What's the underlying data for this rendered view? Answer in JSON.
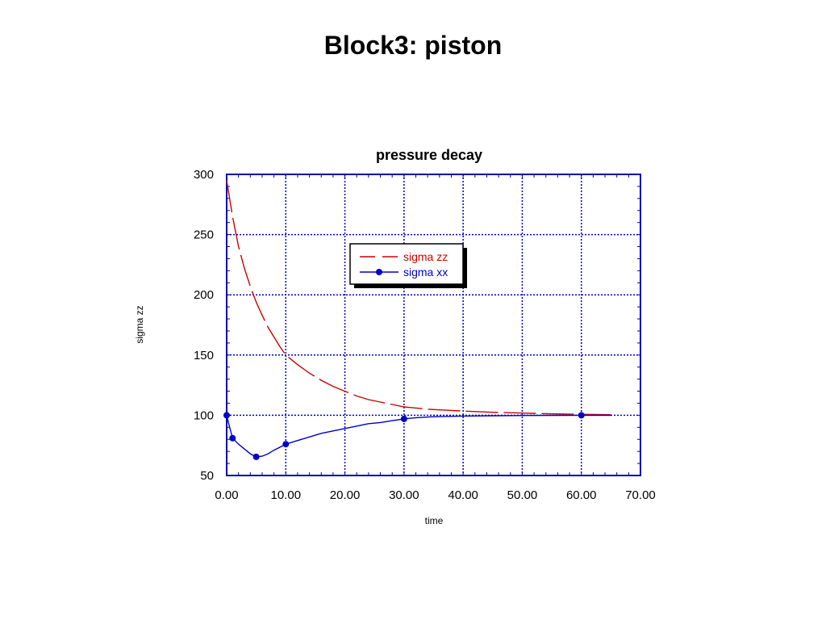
{
  "page": {
    "title": "Block3: piston"
  },
  "chart_data": {
    "type": "line",
    "title": "pressure decay",
    "xlabel": "time",
    "ylabel": "sigma zz",
    "xlim": [
      0,
      70
    ],
    "ylim": [
      50,
      300
    ],
    "xticks": [
      0,
      10,
      20,
      30,
      40,
      50,
      60,
      70
    ],
    "xtick_labels": [
      "0.00",
      "10.00",
      "20.00",
      "30.00",
      "40.00",
      "50.00",
      "60.00",
      "70.00"
    ],
    "yticks": [
      50,
      100,
      150,
      200,
      250,
      300
    ],
    "ytick_labels": [
      "50",
      "100",
      "150",
      "200",
      "250",
      "300"
    ],
    "grid": true,
    "legend_position": "upper-middle",
    "series": [
      {
        "name": "sigma zz",
        "color": "#cc0000",
        "style": "dashed",
        "x": [
          0,
          1,
          2,
          3,
          4,
          5,
          6,
          7,
          8,
          9,
          10,
          12,
          14,
          16,
          18,
          20,
          22,
          24,
          26,
          28,
          30,
          32,
          34,
          36,
          38,
          40,
          45,
          50,
          55,
          60,
          65
        ],
        "y": [
          295,
          265,
          240,
          222,
          207,
          194,
          183,
          173,
          165,
          157,
          150,
          142,
          135,
          129,
          124,
          120,
          116,
          113,
          111,
          109,
          107,
          106,
          105,
          104.5,
          104,
          103.5,
          102.5,
          101.8,
          101.2,
          100.8,
          100.5
        ]
      },
      {
        "name": "sigma xx",
        "color": "#0000cc",
        "style": "solid",
        "x": [
          0,
          0.5,
          1,
          2,
          3,
          4,
          5,
          6,
          7,
          8,
          10,
          12,
          14,
          16,
          18,
          20,
          22,
          24,
          26,
          28,
          30,
          32,
          35,
          40,
          45,
          50,
          55,
          60,
          65
        ],
        "y": [
          100,
          90,
          81,
          76,
          72,
          68,
          65.5,
          66,
          68,
          71,
          76,
          79,
          82,
          85,
          87,
          89,
          91,
          93,
          94,
          95.5,
          97,
          98,
          98.8,
          99.3,
          99.6,
          99.8,
          99.9,
          100,
          100
        ],
        "markers_x": [
          0,
          1,
          5,
          10,
          30,
          60
        ],
        "markers_y": [
          100,
          81,
          65.5,
          76,
          97,
          100
        ]
      }
    ]
  }
}
